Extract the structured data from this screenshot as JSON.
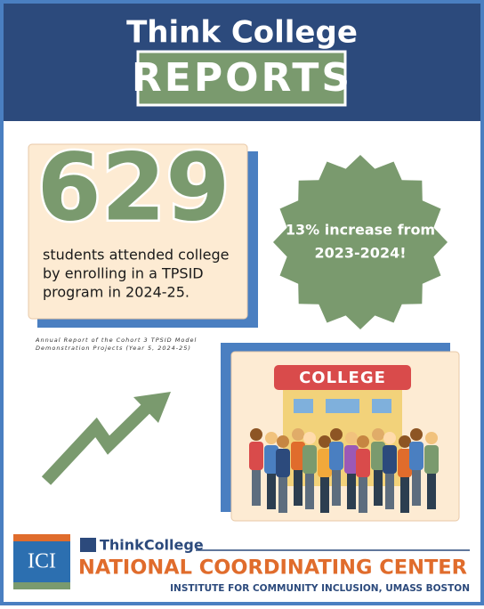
{
  "header": {
    "title": "Think College",
    "badge": "REPORTS"
  },
  "stat": {
    "number": 629,
    "caption_lines": [
      "students attended college",
      "by enrolling in a TPSID",
      "program in 2024-25."
    ]
  },
  "burst": {
    "lines": [
      "13% increase from",
      "2023-2024!"
    ]
  },
  "source": {
    "lines": [
      "Annual Report of the Cohort 3 TPSID Model",
      "Demonstration Projects (Year 5, 2024-25)"
    ]
  },
  "illustration": {
    "sign": "COLLEGE"
  },
  "footer": {
    "logo": "ICI",
    "brand": "ThinkCollege",
    "center": "NATIONAL COORDINATING CENTER",
    "institute": "INSTITUTE FOR COMMUNITY INCLUSION, UMASS BOSTON"
  }
}
